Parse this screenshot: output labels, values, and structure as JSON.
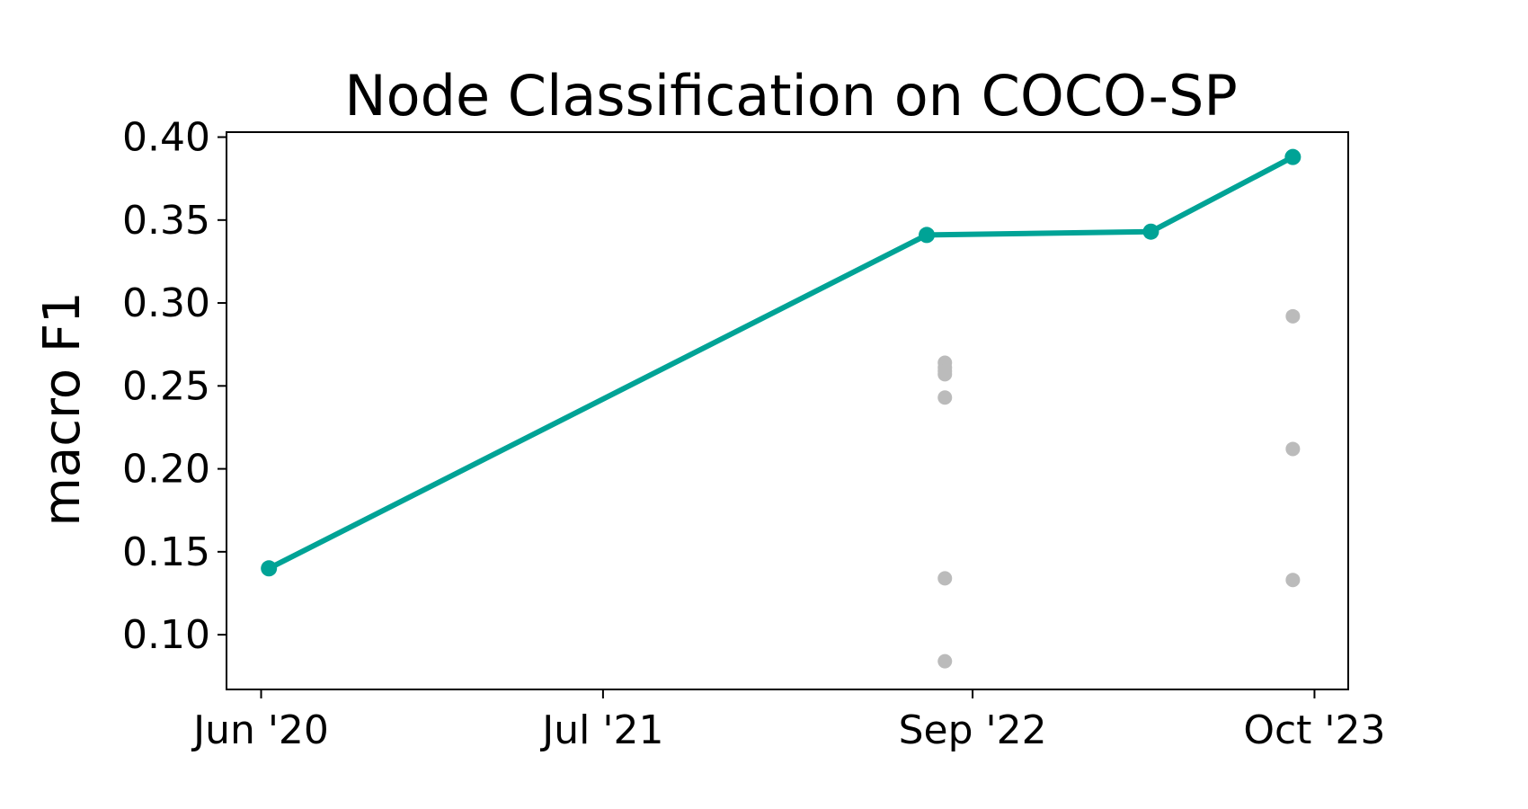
{
  "chart_data": {
    "type": "line",
    "title": "Node Classification on COCO-SP",
    "xlabel": "",
    "ylabel": "macro F1",
    "x_ticks": [
      {
        "date": "2020-06-01",
        "label": "Jun '20"
      },
      {
        "date": "2021-07-01",
        "label": "Jul '21"
      },
      {
        "date": "2022-09-01",
        "label": "Sep '22"
      },
      {
        "date": "2023-10-01",
        "label": "Oct '23"
      }
    ],
    "y_ticks": [
      "0.10",
      "0.15",
      "0.20",
      "0.25",
      "0.30",
      "0.35",
      "0.40"
    ],
    "xlim": [
      "2020-04-22",
      "2023-11-09"
    ],
    "ylim": [
      0.067,
      0.403
    ],
    "grid": false,
    "series": [
      {
        "role": "frontier",
        "color": "#00a396",
        "points": [
          {
            "x": "2020-06-10",
            "y": 0.14
          },
          {
            "x": "2022-07-10",
            "y": 0.341
          },
          {
            "x": "2023-03-26",
            "y": 0.343
          },
          {
            "x": "2023-09-06",
            "y": 0.388
          }
        ]
      },
      {
        "role": "other",
        "color": "#bbbbbb",
        "points": [
          {
            "x": "2022-07-31",
            "y": 0.264
          },
          {
            "x": "2022-07-31",
            "y": 0.261
          },
          {
            "x": "2022-07-31",
            "y": 0.259
          },
          {
            "x": "2022-07-31",
            "y": 0.257
          },
          {
            "x": "2022-07-31",
            "y": 0.243
          },
          {
            "x": "2022-07-31",
            "y": 0.134
          },
          {
            "x": "2022-07-31",
            "y": 0.084
          },
          {
            "x": "2023-09-06",
            "y": 0.292
          },
          {
            "x": "2023-09-06",
            "y": 0.212
          },
          {
            "x": "2023-09-06",
            "y": 0.133
          }
        ]
      }
    ]
  }
}
